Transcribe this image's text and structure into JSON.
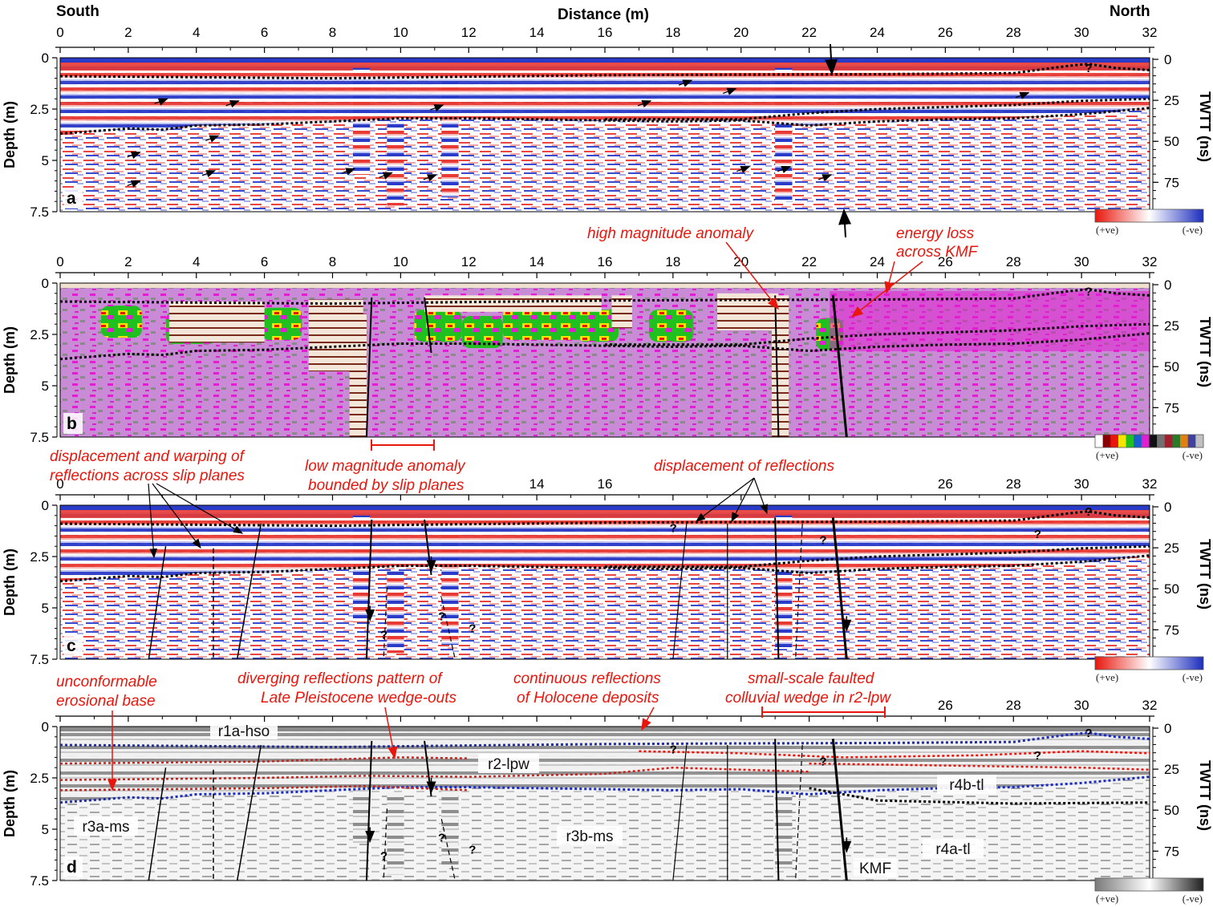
{
  "header": {
    "south": "South",
    "north": "North",
    "distance_label": "Distance (m)"
  },
  "axes": {
    "distance_ticks": [
      "0",
      "2",
      "4",
      "6",
      "8",
      "10",
      "12",
      "14",
      "16",
      "18",
      "20",
      "22",
      "24",
      "26",
      "28",
      "30",
      "32"
    ],
    "depth_ticks": [
      "0",
      "2.5",
      "5",
      "7.5"
    ],
    "twtt_ticks": [
      "0",
      "25",
      "50",
      "75"
    ],
    "depth_label": "Depth (m)",
    "twtt_label": "TWTT (ns)"
  },
  "panels": [
    {
      "letter": "a",
      "style": "redblue",
      "bg": "#ffffff"
    },
    {
      "letter": "b",
      "style": "magnitude",
      "bg": "#c98bd6"
    },
    {
      "letter": "c",
      "style": "redblue",
      "bg": "#ffffff"
    },
    {
      "letter": "d",
      "style": "gray",
      "bg": "#f4f4f4"
    }
  ],
  "colorbars": [
    {
      "pos": "(+ve)",
      "neg": "(-ve)",
      "colors": [
        "#e8160c",
        "#ffffff",
        "#1c2dbd"
      ]
    },
    {
      "pos": "(+ve)",
      "neg": "(-ve)",
      "colors": [
        "#ffffff",
        "#8b0000",
        "#e8160c",
        "#f5e400",
        "#20c020",
        "#1a5fd0",
        "#e020d0",
        "#101010",
        "#707070",
        "#a02030",
        "#2a7a2a",
        "#e08010",
        "#4040a0",
        "#c0c0c0"
      ]
    },
    {
      "pos": "(+ve)",
      "neg": "(-ve)",
      "colors": [
        "#e8160c",
        "#ffffff",
        "#1c2dbd"
      ]
    },
    {
      "pos": "(+ve)",
      "neg": "(-ve)",
      "colors": [
        "#7a7a7a",
        "#ffffff",
        "#202020"
      ]
    }
  ],
  "annotations": {
    "high_mag": "high magnitude anomaly",
    "energy_loss_1": "energy loss",
    "energy_loss_2": "across KMF",
    "disp_warp_1": "displacement and warping of",
    "disp_warp_2": "reflections across slip planes",
    "low_mag_1": "low magnitude anomaly",
    "low_mag_2": "bounded by slip planes",
    "disp_refl": "displacement of reflections",
    "unconf_1": "unconformable",
    "unconf_2": "erosional base",
    "diverg_1": "diverging reflections pattern of",
    "diverg_2": "Late Pleistocene wedge-outs",
    "contin_1": "continuous reflections",
    "contin_2": "of Holocene deposits",
    "small_1": "small-scale faulted",
    "small_2": "colluvial wedge in r2-lpw"
  },
  "units": {
    "r1a": "r1a-hso",
    "r2": "r2-lpw",
    "r3a": "r3a-ms",
    "r3b": "r3b-ms",
    "r4a": "r4a-tl",
    "r4b": "r4b-tl",
    "kmf": "KMF"
  },
  "question_mark": "?",
  "colors": {
    "red": "#e8160c",
    "blue": "#1c2dbd",
    "magenta": "#c98bd6"
  }
}
